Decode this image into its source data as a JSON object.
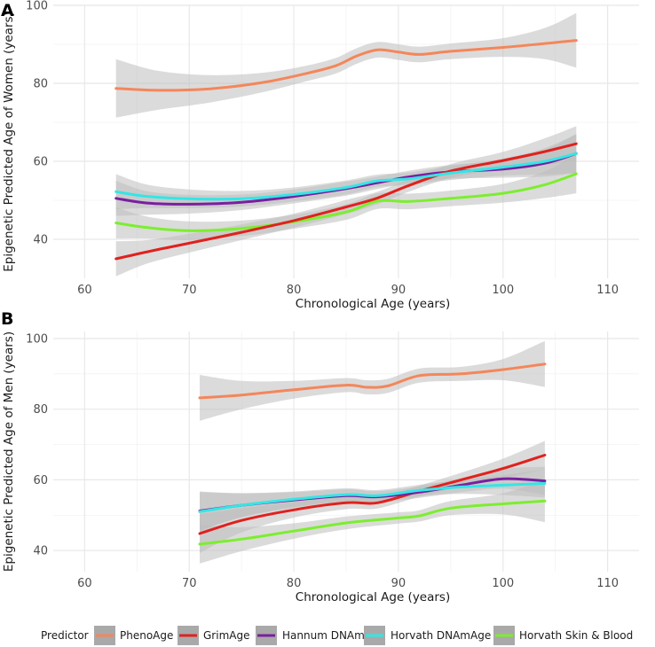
{
  "chart_data": {
    "type": "line",
    "legend": {
      "title": "Predictor",
      "position": "bottom",
      "entries": [
        {
          "name": "PhenoAge",
          "color": "#F4865A"
        },
        {
          "name": "GrimAge",
          "color": "#E0211E"
        },
        {
          "name": "Hannum DNAmAge",
          "color": "#7A1FA0"
        },
        {
          "name": "Horvath DNAmAge",
          "color": "#33E6E6"
        },
        {
          "name": "Horvath Skin & Blood",
          "color": "#7CEE2E"
        }
      ]
    },
    "band_color": "#BEBEBE",
    "panels": [
      {
        "tag": "A",
        "xlabel": "Chronological Age (years)",
        "ylabel": "Epigenetic Predicted Age of Women (years)",
        "xlim": [
          57,
          113
        ],
        "ylim": [
          30,
          100
        ],
        "xticks": [
          "60",
          "70",
          "80",
          "90",
          "100",
          "110"
        ],
        "yticks": [
          "40",
          "60",
          "80",
          "100"
        ],
        "series": [
          {
            "name": "Horvath Skin & Blood",
            "color": "#7CEE2E",
            "points": [
              [
                63,
                44.2
              ],
              [
                66,
                43
              ],
              [
                70,
                42.2
              ],
              [
                75,
                42.8
              ],
              [
                80,
                44.5
              ],
              [
                85,
                47
              ],
              [
                88,
                49.8
              ],
              [
                91,
                49.7
              ],
              [
                95,
                50.5
              ],
              [
                100,
                51.8
              ],
              [
                104,
                54
              ],
              [
                107,
                56.8
              ]
            ],
            "band": [
              4,
              2.8,
              2.4,
              2,
              1.8,
              2,
              2,
              2,
              2,
              2.4,
              3.4,
              5
            ]
          },
          {
            "name": "Hannum DNAmAge",
            "color": "#7A1FA0",
            "points": [
              [
                63,
                50.5
              ],
              [
                66,
                49.3
              ],
              [
                70,
                49
              ],
              [
                75,
                49.5
              ],
              [
                80,
                51
              ],
              [
                85,
                53
              ],
              [
                88,
                54.5
              ],
              [
                91,
                56
              ],
              [
                95,
                57.3
              ],
              [
                100,
                58
              ],
              [
                104,
                59.5
              ],
              [
                107,
                62
              ]
            ],
            "band": [
              4.5,
              3,
              2.4,
              2,
              1.8,
              1.8,
              1.6,
              1.6,
              1.8,
              2.2,
              3.4,
              5
            ]
          },
          {
            "name": "GrimAge",
            "color": "#E0211E",
            "points": [
              [
                63,
                35
              ],
              [
                66,
                36.8
              ],
              [
                70,
                39
              ],
              [
                75,
                41.8
              ],
              [
                80,
                44.8
              ],
              [
                85,
                48.3
              ],
              [
                88,
                50.6
              ],
              [
                91,
                53.8
              ],
              [
                95,
                57.5
              ],
              [
                100,
                60.2
              ],
              [
                104,
                62.5
              ],
              [
                107,
                64.5
              ]
            ],
            "band": [
              4.5,
              3,
              2.4,
              2,
              1.8,
              1.8,
              1.6,
              1.6,
              1.8,
              2.2,
              3.4,
              4.5
            ]
          },
          {
            "name": "Horvath DNAmAge",
            "color": "#33E6E6",
            "points": [
              [
                63,
                52.2
              ],
              [
                66,
                51
              ],
              [
                70,
                50.4
              ],
              [
                75,
                50.4
              ],
              [
                80,
                51.5
              ],
              [
                85,
                53.3
              ],
              [
                88,
                55
              ],
              [
                91,
                55.5
              ],
              [
                95,
                57
              ],
              [
                100,
                58.5
              ],
              [
                104,
                60
              ],
              [
                107,
                62
              ]
            ],
            "band": [
              4.5,
              3,
              2.4,
              2,
              1.8,
              1.8,
              1.6,
              1.6,
              1.8,
              2.2,
              3.4,
              5
            ]
          },
          {
            "name": "PhenoAge",
            "color": "#F4865A",
            "points": [
              [
                63,
                78.7
              ],
              [
                67,
                78.2
              ],
              [
                72,
                78.6
              ],
              [
                77,
                80.2
              ],
              [
                81,
                82.4
              ],
              [
                84,
                84.5
              ],
              [
                86,
                87
              ],
              [
                88,
                88.6
              ],
              [
                90,
                88
              ],
              [
                92,
                87.4
              ],
              [
                95,
                88.2
              ],
              [
                100,
                89.2
              ],
              [
                104,
                90.2
              ],
              [
                107,
                91
              ]
            ],
            "band": [
              7.5,
              5,
              3.5,
              2.5,
              2,
              2,
              2,
              2,
              2,
              2,
              2,
              2.4,
              4,
              7
            ]
          }
        ]
      },
      {
        "tag": "B",
        "xlabel": "Chronological Age (years)",
        "ylabel": "Epigenetic Predicted Age of Men (years)",
        "xlim": [
          57,
          113
        ],
        "ylim": [
          34,
          102
        ],
        "xticks": [
          "60",
          "70",
          "80",
          "90",
          "100",
          "110"
        ],
        "yticks": [
          "40",
          "60",
          "80",
          "100"
        ],
        "series": [
          {
            "name": "Horvath Skin & Blood",
            "color": "#7CEE2E",
            "points": [
              [
                71,
                41.8
              ],
              [
                75,
                43.2
              ],
              [
                80,
                45.5
              ],
              [
                85,
                47.8
              ],
              [
                90,
                49.2
              ],
              [
                92,
                49.8
              ],
              [
                95,
                52
              ],
              [
                100,
                53.2
              ],
              [
                104,
                54
              ]
            ],
            "band": [
              5.5,
              3.4,
              2.2,
              1.8,
              1.6,
              1.6,
              2,
              3,
              6
            ]
          },
          {
            "name": "GrimAge",
            "color": "#E0211E",
            "points": [
              [
                71,
                44.8
              ],
              [
                75,
                48.5
              ],
              [
                80,
                51.5
              ],
              [
                85,
                53.5
              ],
              [
                88,
                53.5
              ],
              [
                92,
                56.8
              ],
              [
                96,
                60
              ],
              [
                100,
                63.2
              ],
              [
                104,
                67
              ]
            ],
            "band": [
              5.5,
              3.4,
              2.2,
              1.8,
              1.6,
              1.6,
              2,
              2.8,
              4
            ]
          },
          {
            "name": "Hannum DNAmAge",
            "color": "#7A1FA0",
            "points": [
              [
                71,
                51.2
              ],
              [
                75,
                52.8
              ],
              [
                80,
                54.3
              ],
              [
                85,
                55.5
              ],
              [
                88,
                55.2
              ],
              [
                92,
                56.5
              ],
              [
                96,
                58.5
              ],
              [
                100,
                60.3
              ],
              [
                104,
                59.7
              ]
            ],
            "band": [
              5.5,
              3.4,
              2.2,
              1.8,
              1.6,
              1.6,
              2,
              2.8,
              4
            ]
          },
          {
            "name": "Horvath DNAmAge",
            "color": "#33E6E6",
            "points": [
              [
                71,
                51
              ],
              [
                75,
                52.8
              ],
              [
                80,
                54.5
              ],
              [
                85,
                55.8
              ],
              [
                88,
                55.5
              ],
              [
                92,
                57
              ],
              [
                96,
                58
              ],
              [
                100,
                58.5
              ],
              [
                104,
                59
              ]
            ],
            "band": [
              5.5,
              3.4,
              2.2,
              1.8,
              1.6,
              1.6,
              2,
              2.8,
              4
            ]
          },
          {
            "name": "PhenoAge",
            "color": "#F4865A",
            "points": [
              [
                71,
                83.2
              ],
              [
                75,
                84
              ],
              [
                80,
                85.5
              ],
              [
                85,
                86.8
              ],
              [
                87,
                86.2
              ],
              [
                89,
                86.6
              ],
              [
                92,
                89.5
              ],
              [
                96,
                90
              ],
              [
                100,
                91.2
              ],
              [
                104,
                92.8
              ]
            ],
            "band": [
              6.5,
              4,
              2.5,
              2,
              2,
              2,
              2,
              2,
              3,
              6.5
            ]
          }
        ]
      }
    ]
  }
}
